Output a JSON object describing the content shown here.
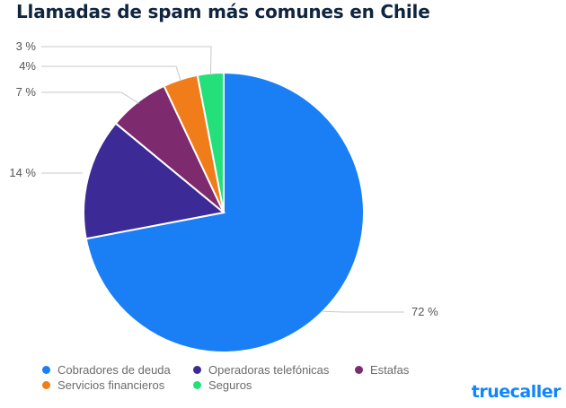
{
  "title": "Llamadas de spam más comunes en Chile",
  "brand": {
    "name": "truecaller",
    "color": "#0e86ff"
  },
  "chart_data": {
    "type": "pie",
    "title": "Llamadas de spam más comunes en Chile",
    "legend_position": "bottom-left",
    "slices": [
      {
        "name": "Cobradores de deuda",
        "value": 72,
        "label": "72 %",
        "color": "#1a7ff5"
      },
      {
        "name": "Operadoras telefónicas",
        "value": 14,
        "label": "14 %",
        "color": "#3c2a96"
      },
      {
        "name": "Estafas",
        "value": 7,
        "label": "7 %",
        "color": "#7d2a6e"
      },
      {
        "name": "Servicios financieros",
        "value": 4,
        "label": "4%",
        "color": "#f07d1a"
      },
      {
        "name": "Seguros",
        "value": 3,
        "label": "3 %",
        "color": "#24e07a"
      }
    ]
  }
}
